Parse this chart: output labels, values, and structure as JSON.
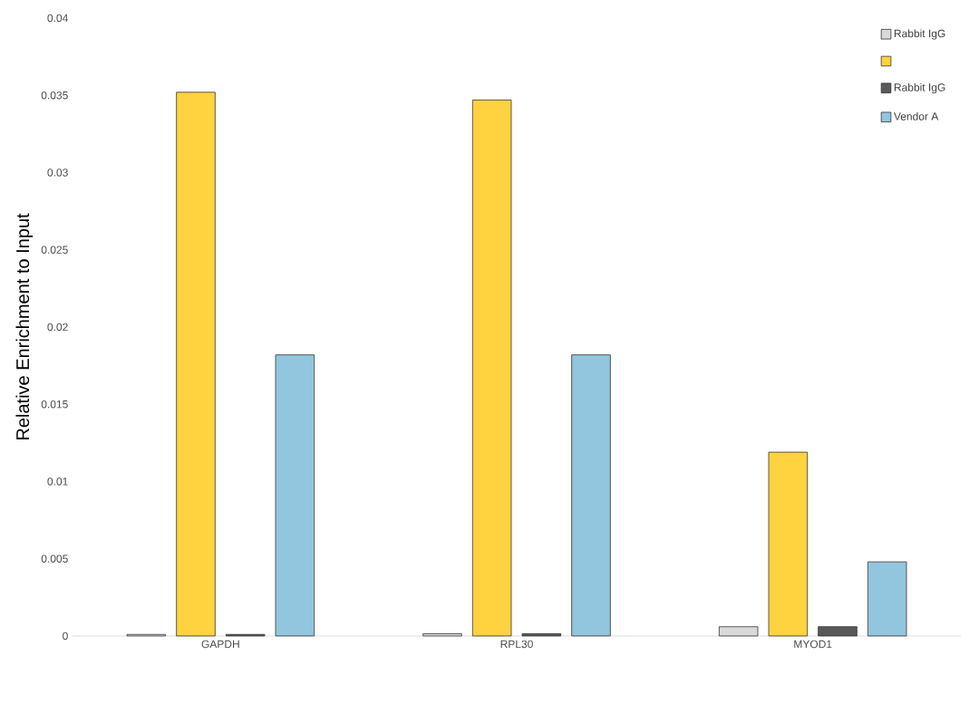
{
  "chart_data": {
    "type": "bar",
    "ylabel": "Relative Enrichment to Input",
    "categories": [
      "GAPDH",
      "RPL30",
      "MYOD1"
    ],
    "series": [
      {
        "name": "Rabbit IgG",
        "color": "#d9d9d9",
        "values": [
          0.0001,
          0.00015,
          0.0006
        ]
      },
      {
        "color": "#ffd23f",
        "values": [
          0.0352,
          0.0347,
          0.0119
        ]
      },
      {
        "name": "Rabbit IgG",
        "color": "#595959",
        "values": [
          0.0001,
          0.00015,
          0.0006
        ]
      },
      {
        "name": "Vendor A",
        "color": "#92c5de",
        "values": [
          0.0182,
          0.0182,
          0.0048
        ]
      }
    ],
    "ylim": [
      0,
      0.04
    ],
    "yticks": [
      0,
      0.005,
      0.01,
      0.015,
      0.02,
      0.025,
      0.03,
      0.035,
      0.04
    ],
    "legend": "top right"
  }
}
